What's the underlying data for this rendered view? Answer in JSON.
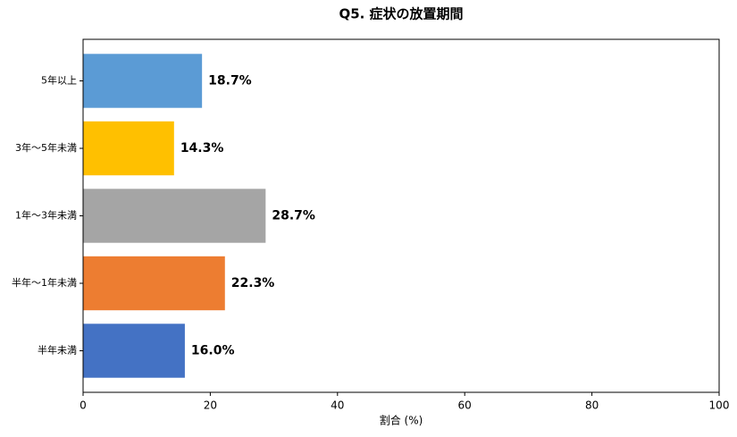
{
  "chart_data": {
    "type": "barh",
    "title": "Q5. 症状の放置期間",
    "categories": [
      "5年以上",
      "3年〜5年未満",
      "1年〜3年未満",
      "半年〜1年未満",
      "半年未満"
    ],
    "values": [
      18.7,
      14.3,
      28.7,
      22.3,
      16.0
    ],
    "value_labels": [
      "18.7%",
      "14.3%",
      "28.7%",
      "22.3%",
      "16.0%"
    ],
    "colors": [
      "#5b9bd5",
      "#ffc000",
      "#a5a5a5",
      "#ed7d31",
      "#4472c4"
    ],
    "xlabel": "割合 (%)",
    "xlim": [
      0,
      100
    ],
    "xticks": [
      0,
      20,
      40,
      60,
      80,
      100
    ]
  }
}
